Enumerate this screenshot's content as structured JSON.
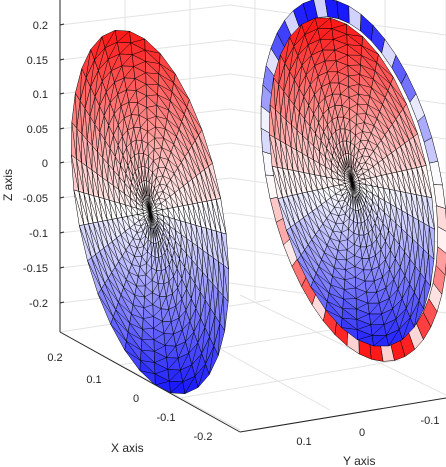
{
  "chart_data": {
    "type": "surface3d",
    "description_free": true,
    "xlabel": "X axis",
    "ylabel": "Y axis",
    "zlabel": "Z axis",
    "x_ticks": [
      "0.2",
      "0.1",
      "0",
      "-0.1",
      "-0.2"
    ],
    "y_ticks": [
      "0.1",
      "0",
      "-0.1"
    ],
    "z_ticks": [
      "0.2",
      "0.15",
      "0.1",
      "0.05",
      "0",
      "-0.05",
      "-0.1",
      "-0.15",
      "-0.2"
    ],
    "zlim": [
      -0.25,
      0.25
    ],
    "grid": true,
    "colormap": {
      "low": "#1a1aff",
      "mid": "#ffffff",
      "high": "#ff1a1a"
    },
    "surfaces": [
      {
        "id": "left-disk",
        "shape": "disk",
        "rings": 14,
        "spokes": 32
      },
      {
        "id": "right-disk",
        "shape": "disk-with-rim",
        "rings": 14,
        "spokes": 32
      }
    ]
  }
}
